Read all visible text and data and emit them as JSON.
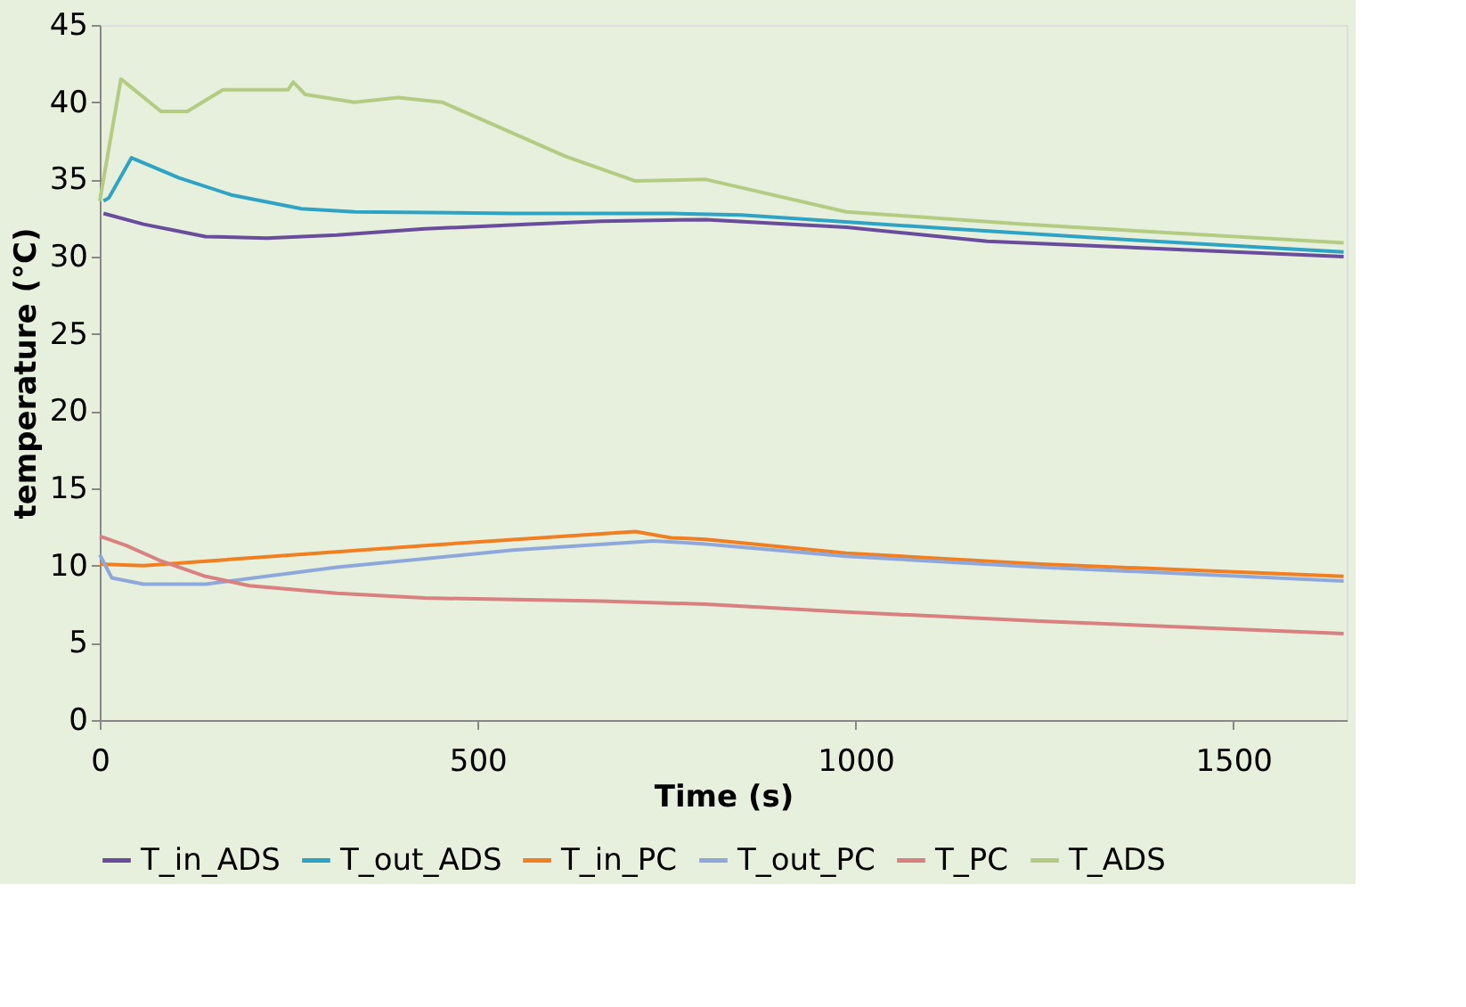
{
  "chart_data": {
    "type": "line",
    "xlabel": "Time (s)",
    "ylabel": "temperature (°C)",
    "xlim": [
      0,
      1650
    ],
    "xticks": [
      0,
      500,
      1000,
      1500
    ],
    "ylim": [
      0,
      45
    ],
    "yticks": [
      0,
      5,
      10,
      15,
      20,
      25,
      30,
      35,
      40,
      45
    ],
    "grid": false,
    "legend": "bottom",
    "line_style": "solid",
    "series": [
      {
        "name": "T_in_ADS",
        "color": "#6a4c9c",
        "x": [
          5,
          58,
          140,
          221,
          314,
          430,
          570,
          663,
          802,
          988,
          1174,
          1407,
          1646
        ],
        "values": [
          32.8,
          32.1,
          31.3,
          31.2,
          31.4,
          31.8,
          32.1,
          32.3,
          32.4,
          31.9,
          31.0,
          30.5,
          30.0
        ]
      },
      {
        "name": "T_out_ADS",
        "color": "#2ea3c4",
        "x": [
          5,
          12,
          42,
          105,
          174,
          267,
          337,
          547,
          756,
          849,
          1128,
          1360,
          1646
        ],
        "values": [
          33.6,
          33.8,
          36.4,
          35.1,
          34.0,
          33.1,
          32.9,
          32.8,
          32.8,
          32.7,
          31.8,
          31.1,
          30.3
        ]
      },
      {
        "name": "T_in_PC",
        "color": "#f07f22",
        "x": [
          0,
          58,
          430,
          709,
          756,
          802,
          988,
          1244,
          1646
        ],
        "values": [
          10.1,
          10.0,
          11.3,
          12.2,
          11.8,
          11.7,
          10.8,
          10.1,
          9.3
        ]
      },
      {
        "name": "T_out_PC",
        "color": "#8fa8dc",
        "x": [
          0,
          16,
          58,
          140,
          314,
          547,
          733,
          802,
          988,
          1244,
          1646
        ],
        "values": [
          10.7,
          9.2,
          8.8,
          8.8,
          9.9,
          11.0,
          11.6,
          11.4,
          10.6,
          9.9,
          9.0
        ]
      },
      {
        "name": "T_PC",
        "color": "#d98080",
        "x": [
          0,
          35,
          81,
          140,
          198,
          314,
          430,
          663,
          802,
          988,
          1244,
          1646
        ],
        "values": [
          11.9,
          11.3,
          10.3,
          9.3,
          8.7,
          8.2,
          7.9,
          7.7,
          7.5,
          7.0,
          6.4,
          5.6
        ]
      },
      {
        "name": "T_ADS",
        "color": "#b3cc82",
        "x": [
          0,
          28,
          81,
          116,
          163,
          249,
          256,
          272,
          337,
          395,
          453,
          523,
          616,
          709,
          802,
          988,
          1221,
          1646
        ],
        "values": [
          33.6,
          41.5,
          39.4,
          39.4,
          40.8,
          40.8,
          41.3,
          40.5,
          40.0,
          40.3,
          40.0,
          38.5,
          36.5,
          34.9,
          35.0,
          32.9,
          32.1,
          30.9
        ]
      }
    ]
  }
}
